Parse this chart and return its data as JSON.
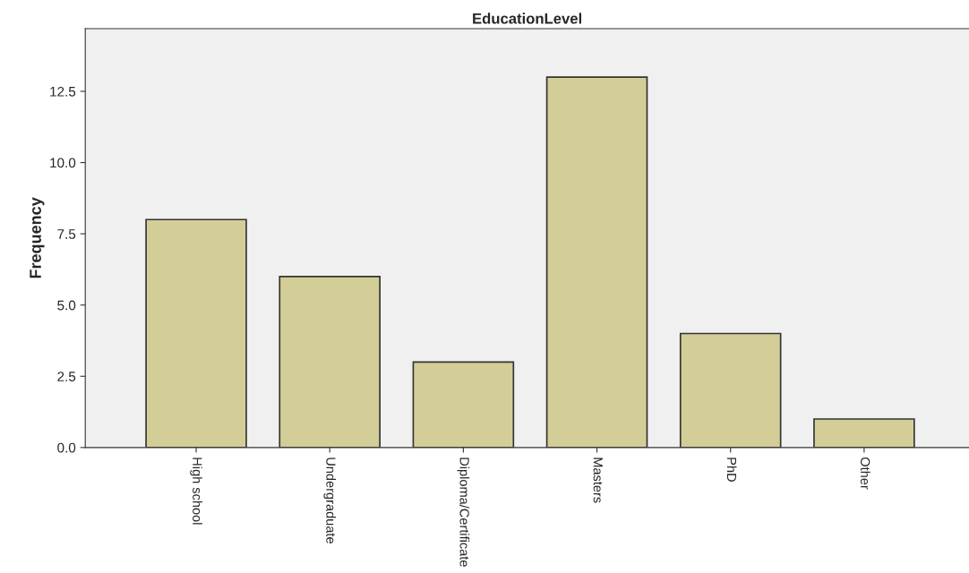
{
  "chart_data": {
    "type": "bar",
    "title": "EducationLevel",
    "ylabel": "Frequency",
    "categories": [
      "High school",
      "Undergraduate",
      "Diploma/Certificate",
      "Masters",
      "PhD",
      "Other"
    ],
    "values": [
      8,
      6,
      3,
      13,
      4,
      1
    ],
    "color": "#d3ce97",
    "ylim": [
      0,
      14.7
    ],
    "yticks": [
      {
        "value": 0,
        "label": "0.0"
      },
      {
        "value": 2.5,
        "label": "2.5"
      },
      {
        "value": 5,
        "label": "5.0"
      },
      {
        "value": 7.5,
        "label": "7.5"
      },
      {
        "value": 10,
        "label": "10.0"
      },
      {
        "value": 12.5,
        "label": "12.5"
      }
    ],
    "grid": false,
    "legend": false
  }
}
